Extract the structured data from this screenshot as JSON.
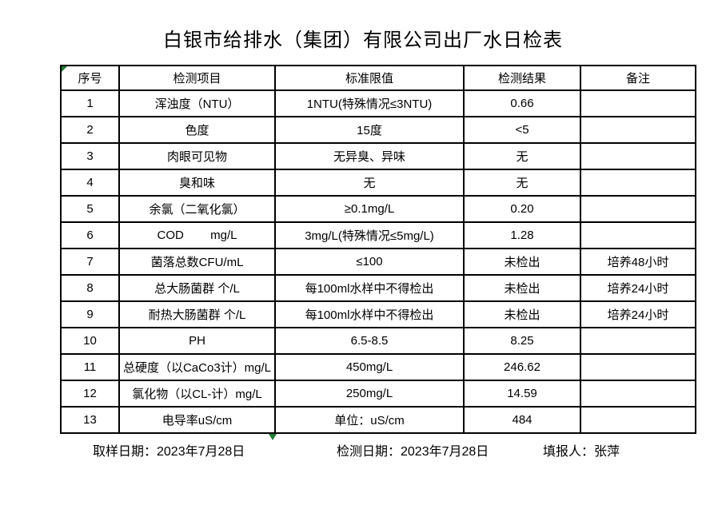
{
  "title": "白银市给排水（集团）有限公司出厂水日检表",
  "colors": {
    "marker_green": "#217c38",
    "border": "#000000",
    "background": "#ffffff"
  },
  "table": {
    "headers": [
      "序号",
      "检测项目",
      "标准限值",
      "检测结果",
      "备注"
    ],
    "rows": [
      {
        "no": "1",
        "item": "浑浊度（NTU）",
        "limit": "1NTU(特殊情况≤3NTU)",
        "result": "0.66",
        "remark": ""
      },
      {
        "no": "2",
        "item": "色度",
        "limit": "15度",
        "result": "<5",
        "remark": ""
      },
      {
        "no": "3",
        "item": "肉眼可见物",
        "limit": "无异臭、异味",
        "result": "无",
        "remark": ""
      },
      {
        "no": "4",
        "item": "臭和味",
        "limit": "无",
        "result": "无",
        "remark": ""
      },
      {
        "no": "5",
        "item": "余氯（二氧化氯）",
        "limit": "≥0.1mg/L",
        "result": "0.20",
        "remark": ""
      },
      {
        "no": "6",
        "item": "COD        mg/L",
        "limit": "3mg/L(特殊情况≤5mg/L)",
        "result": "1.28",
        "remark": ""
      },
      {
        "no": "7",
        "item": "菌落总数CFU/mL",
        "limit": "≤100",
        "result": "未检出",
        "remark": "培养48小时"
      },
      {
        "no": "8",
        "item": "总大肠菌群 个/L",
        "limit": "每100ml水样中不得检出",
        "result": "未检出",
        "remark": "培养24小时"
      },
      {
        "no": "9",
        "item": "耐热大肠菌群 个/L",
        "limit": "每100ml水样中不得检出",
        "result": "未检出",
        "remark": "培养24小时"
      },
      {
        "no": "10",
        "item": "PH",
        "limit": "6.5-8.5",
        "result": "8.25",
        "remark": ""
      },
      {
        "no": "11",
        "item": "总硬度（以CaCo3计）mg/L",
        "limit": "450mg/L",
        "result": "246.62",
        "remark": ""
      },
      {
        "no": "12",
        "item": "氯化物（以CL-计）mg/L",
        "limit": "250mg/L",
        "result": "14.59",
        "remark": ""
      },
      {
        "no": "13",
        "item": "电导率uS/cm",
        "limit": "单位：uS/cm",
        "result": "484",
        "remark": ""
      }
    ]
  },
  "footer": {
    "sampling_date": "取样日期：2023年7月28日",
    "test_date": "检测日期：2023年7月28日",
    "reporter": "填报人：张萍"
  }
}
